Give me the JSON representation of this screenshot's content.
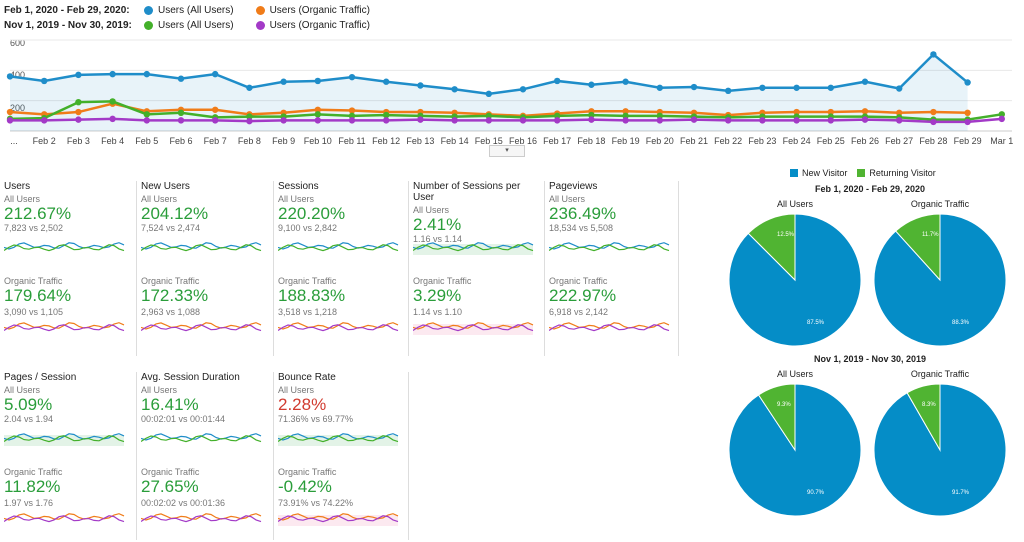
{
  "legend": {
    "rows": [
      {
        "range": "Feb 1, 2020 - Feb 29, 2020:",
        "items": [
          {
            "label": "Users (All Users)",
            "color": "#1f8dc9"
          },
          {
            "label": "Users (Organic Traffic)",
            "color": "#f07c19"
          }
        ]
      },
      {
        "range": "Nov 1, 2019 - Nov 30, 2019:",
        "items": [
          {
            "label": "Users (All Users)",
            "color": "#43b02a"
          },
          {
            "label": "Users (Organic Traffic)",
            "color": "#a33ac7"
          }
        ]
      }
    ]
  },
  "chart_data": {
    "type": "line",
    "y_ticks": [
      "600",
      "400",
      "200"
    ],
    "ylim": [
      0,
      600
    ],
    "x_labels": [
      "...",
      "Feb 2",
      "Feb 3",
      "Feb 4",
      "Feb 5",
      "Feb 6",
      "Feb 7",
      "Feb 8",
      "Feb 9",
      "Feb 10",
      "Feb 11",
      "Feb 12",
      "Feb 13",
      "Feb 14",
      "Feb 15",
      "Feb 16",
      "Feb 17",
      "Feb 18",
      "Feb 19",
      "Feb 20",
      "Feb 21",
      "Feb 22",
      "Feb 23",
      "Feb 24",
      "Feb 25",
      "Feb 26",
      "Feb 27",
      "Feb 28",
      "Feb 29",
      "Mar 1"
    ],
    "series": [
      {
        "color": "#1f8dc9",
        "fill": true,
        "values": [
          360,
          330,
          370,
          375,
          375,
          345,
          375,
          285,
          325,
          330,
          355,
          325,
          300,
          275,
          245,
          275,
          330,
          305,
          325,
          285,
          290,
          265,
          285,
          285,
          285,
          325,
          280,
          505,
          320
        ]
      },
      {
        "color": "#f07c19",
        "values": [
          125,
          110,
          125,
          180,
          130,
          140,
          140,
          110,
          120,
          140,
          135,
          125,
          125,
          120,
          110,
          100,
          115,
          130,
          130,
          125,
          120,
          105,
          120,
          125,
          125,
          130,
          120,
          125,
          120
        ]
      },
      {
        "color": "#43b02a",
        "values": [
          80,
          85,
          190,
          195,
          110,
          120,
          90,
          95,
          95,
          110,
          100,
          105,
          100,
          95,
          100,
          90,
          100,
          105,
          100,
          100,
          95,
          90,
          95,
          95,
          95,
          95,
          90,
          75,
          75,
          110
        ]
      },
      {
        "color": "#a33ac7",
        "values": [
          70,
          70,
          75,
          80,
          70,
          70,
          70,
          65,
          70,
          70,
          70,
          70,
          75,
          70,
          70,
          70,
          70,
          75,
          70,
          70,
          75,
          70,
          70,
          70,
          70,
          75,
          70,
          60,
          60,
          80
        ]
      }
    ]
  },
  "collapse_icon": "▾",
  "metrics": [
    {
      "title": "Users",
      "seg1": "All Users",
      "pct1": "212.67%",
      "cmp1": "7,823 vs 2,502",
      "seg2": "Organic Traffic",
      "pct2": "179.64%",
      "cmp2": "3,090 vs 1,105",
      "neg1": false,
      "neg2": false
    },
    {
      "title": "New Users",
      "seg1": "All Users",
      "pct1": "204.12%",
      "cmp1": "7,524 vs 2,474",
      "seg2": "Organic Traffic",
      "pct2": "172.33%",
      "cmp2": "2,963 vs 1,088",
      "neg1": false,
      "neg2": false
    },
    {
      "title": "Sessions",
      "seg1": "All Users",
      "pct1": "220.20%",
      "cmp1": "9,100 vs 2,842",
      "seg2": "Organic Traffic",
      "pct2": "188.83%",
      "cmp2": "3,518 vs 1,218",
      "neg1": false,
      "neg2": false
    },
    {
      "title": "Number of Sessions per User",
      "seg1": "All Users",
      "pct1": "2.41%",
      "cmp1": "1.16 vs 1.14",
      "seg2": "Organic Traffic",
      "pct2": "3.29%",
      "cmp2": "1.14 vs 1.10",
      "neg1": false,
      "neg2": false
    },
    {
      "title": "Pageviews",
      "seg1": "All Users",
      "pct1": "236.49%",
      "cmp1": "18,534 vs 5,508",
      "seg2": "Organic Traffic",
      "pct2": "222.97%",
      "cmp2": "6,918 vs 2,142",
      "neg1": false,
      "neg2": false
    },
    {
      "title": "Pages / Session",
      "seg1": "All Users",
      "pct1": "5.09%",
      "cmp1": "2.04 vs 1.94",
      "seg2": "Organic Traffic",
      "pct2": "11.82%",
      "cmp2": "1.97 vs 1.76",
      "neg1": false,
      "neg2": false
    },
    {
      "title": "Avg. Session Duration",
      "seg1": "All Users",
      "pct1": "16.41%",
      "cmp1": "00:02:01 vs 00:01:44",
      "seg2": "Organic Traffic",
      "pct2": "27.65%",
      "cmp2": "00:02:02 vs 00:01:36",
      "neg1": false,
      "neg2": false
    },
    {
      "title": "Bounce Rate",
      "seg1": "All Users",
      "pct1": "2.28%",
      "cmp1": "71.36% vs 69.77%",
      "seg2": "Organic Traffic",
      "pct2": "-0.42%",
      "cmp2": "73.91% vs 74.22%",
      "neg1": true,
      "neg2": false
    }
  ],
  "pies": {
    "legend": [
      {
        "label": "New Visitor",
        "color": "#058dc7"
      },
      {
        "label": "Returning Visitor",
        "color": "#50b432"
      }
    ],
    "groups": [
      {
        "title": "Feb 1, 2020 - Feb 29, 2020",
        "charts": [
          {
            "label": "All Users",
            "new": 87.5,
            "ret": 12.5,
            "new_label": "87.5%",
            "ret_label": "12.5%"
          },
          {
            "label": "Organic Traffic",
            "new": 88.3,
            "ret": 11.7,
            "new_label": "88.3%",
            "ret_label": "11.7%"
          }
        ]
      },
      {
        "title": "Nov 1, 2019 - Nov 30, 2019",
        "charts": [
          {
            "label": "All Users",
            "new": 90.7,
            "ret": 9.3,
            "new_label": "90.7%",
            "ret_label": "9.3%"
          },
          {
            "label": "Organic Traffic",
            "new": 91.7,
            "ret": 8.3,
            "new_label": "91.7%",
            "ret_label": "8.3%"
          }
        ]
      }
    ]
  }
}
